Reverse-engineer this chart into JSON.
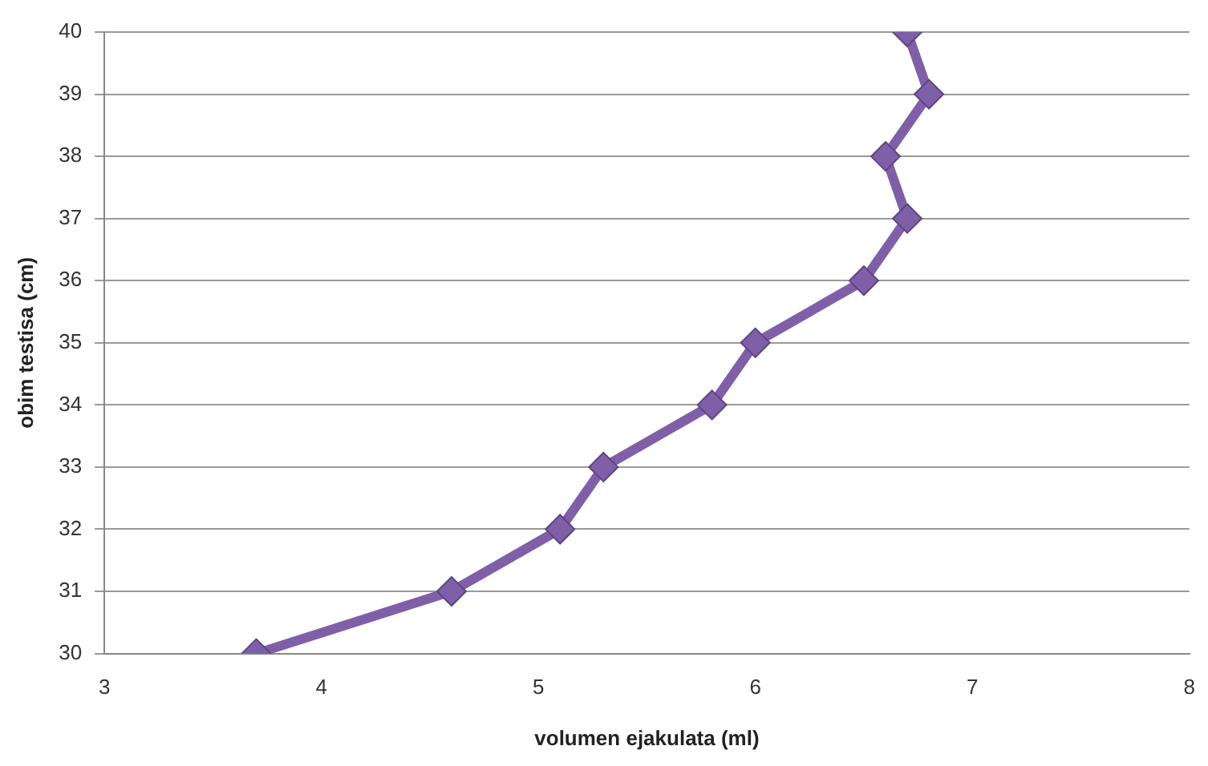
{
  "chart_data": {
    "type": "line",
    "xlabel": "volumen ejakulata (ml)",
    "ylabel": "obim testisa (cm)",
    "x": [
      3.7,
      4.6,
      5.1,
      5.3,
      5.8,
      6.0,
      6.5,
      6.7,
      6.6,
      6.8,
      6.7
    ],
    "series": [
      {
        "color": "#7f60a8",
        "values": [
          30,
          31,
          32,
          33,
          34,
          35,
          36,
          37,
          38,
          39,
          40
        ]
      }
    ],
    "xlim": [
      3,
      8
    ],
    "xticks": [
      3,
      4,
      5,
      6,
      7,
      8
    ],
    "ylim": [
      30,
      40
    ],
    "yticks": [
      30,
      31,
      32,
      33,
      34,
      35,
      36,
      37,
      38,
      39,
      40
    ],
    "grid": "y",
    "legend": false,
    "marker": "diamond",
    "line_style": "solid"
  }
}
